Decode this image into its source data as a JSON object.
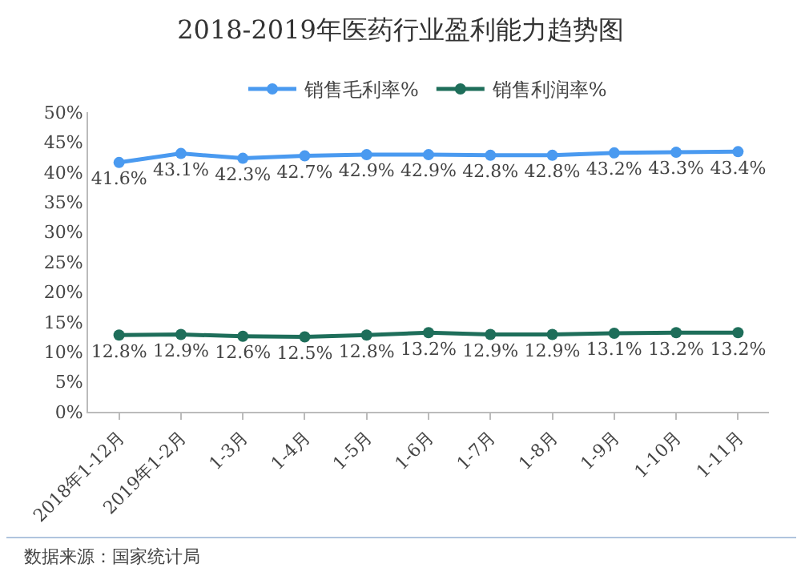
{
  "chart_data": {
    "type": "line",
    "title": "2018-2019年医药行业盈利能力趋势图",
    "categories": [
      "2018年1-12月",
      "2019年1-2月",
      "1-3月",
      "1-4月",
      "1-5月",
      "1-6月",
      "1-7月",
      "1-8月",
      "1-9月",
      "1-10月",
      "1-11月"
    ],
    "series": [
      {
        "name": "销售毛利率%",
        "color": "#4a9af0",
        "values": [
          41.6,
          43.1,
          42.3,
          42.7,
          42.9,
          42.9,
          42.8,
          42.8,
          43.2,
          43.3,
          43.4
        ],
        "value_labels": [
          "41.6%",
          "43.1%",
          "42.3%",
          "42.7%",
          "42.9%",
          "42.9%",
          "42.8%",
          "42.8%",
          "43.2%",
          "43.3%",
          "43.4%"
        ]
      },
      {
        "name": "销售利润率%",
        "color": "#1e6e5a",
        "values": [
          12.8,
          12.9,
          12.6,
          12.5,
          12.8,
          13.2,
          12.9,
          12.9,
          13.1,
          13.2,
          13.2
        ],
        "value_labels": [
          "12.8%",
          "12.9%",
          "12.6%",
          "12.5%",
          "12.8%",
          "13.2%",
          "12.9%",
          "12.9%",
          "13.1%",
          "13.2%",
          "13.2%"
        ]
      }
    ],
    "ylim": [
      0,
      50
    ],
    "yticks": [
      {
        "value": 0,
        "label": "0%"
      },
      {
        "value": 5,
        "label": "5%"
      },
      {
        "value": 10,
        "label": "10%"
      },
      {
        "value": 15,
        "label": "15%"
      },
      {
        "value": 20,
        "label": "20%"
      },
      {
        "value": 25,
        "label": "25%"
      },
      {
        "value": 30,
        "label": "30%"
      },
      {
        "value": 35,
        "label": "35%"
      },
      {
        "value": 40,
        "label": "40%"
      },
      {
        "value": 45,
        "label": "45%"
      },
      {
        "value": 50,
        "label": "50%"
      }
    ],
    "legend": "top",
    "marker": "circle",
    "line_style": "solid",
    "annotations": [
      "数据来源：国家统计局"
    ]
  }
}
